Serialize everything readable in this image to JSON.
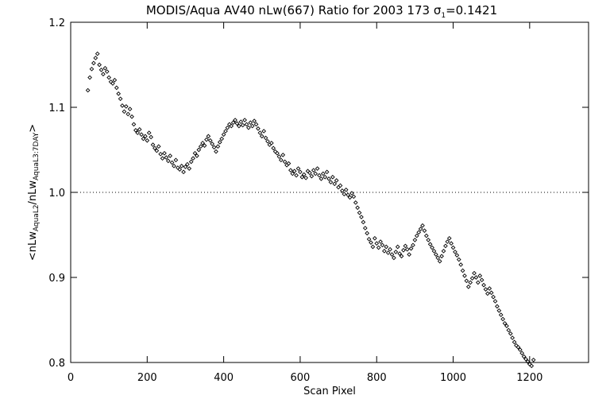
{
  "chart_data": {
    "type": "scatter",
    "title_prefix": "MODIS/Aqua AV40 nLw(667) Ratio for 2003 173 ",
    "title_sigma": "σ",
    "title_sigma_sub": "1",
    "title_suffix": "=0.1421",
    "xlabel": "Scan Pixel",
    "ylabel_open": "<nLw",
    "ylabel_sub1": "AquaL2",
    "ylabel_mid": "/nLw",
    "ylabel_sub2": "AquaL3:7DAY",
    "ylabel_close": ">",
    "x_ticks": [
      "0",
      "200",
      "400",
      "600",
      "800",
      "1000",
      "1200"
    ],
    "y_ticks": [
      "0.8",
      "0.9",
      "1.0",
      "1.1",
      "1.2"
    ],
    "xlim": [
      0,
      1354
    ],
    "ylim": [
      0.8,
      1.2
    ],
    "reference_line_y": 1.0,
    "marker": "diamond",
    "points": [
      [
        45,
        1.12
      ],
      [
        50,
        1.135
      ],
      [
        55,
        1.145
      ],
      [
        60,
        1.152
      ],
      [
        65,
        1.158
      ],
      [
        70,
        1.163
      ],
      [
        75,
        1.15
      ],
      [
        80,
        1.144
      ],
      [
        85,
        1.139
      ],
      [
        90,
        1.146
      ],
      [
        95,
        1.142
      ],
      [
        100,
        1.135
      ],
      [
        105,
        1.13
      ],
      [
        110,
        1.128
      ],
      [
        115,
        1.132
      ],
      [
        120,
        1.123
      ],
      [
        125,
        1.116
      ],
      [
        130,
        1.11
      ],
      [
        135,
        1.102
      ],
      [
        140,
        1.095
      ],
      [
        145,
        1.101
      ],
      [
        150,
        1.092
      ],
      [
        155,
        1.098
      ],
      [
        160,
        1.089
      ],
      [
        165,
        1.08
      ],
      [
        170,
        1.073
      ],
      [
        175,
        1.07
      ],
      [
        180,
        1.074
      ],
      [
        185,
        1.068
      ],
      [
        190,
        1.063
      ],
      [
        195,
        1.066
      ],
      [
        200,
        1.061
      ],
      [
        205,
        1.07
      ],
      [
        210,
        1.065
      ],
      [
        215,
        1.056
      ],
      [
        220,
        1.052
      ],
      [
        225,
        1.049
      ],
      [
        230,
        1.054
      ],
      [
        235,
        1.045
      ],
      [
        240,
        1.04
      ],
      [
        245,
        1.046
      ],
      [
        250,
        1.041
      ],
      [
        255,
        1.037
      ],
      [
        260,
        1.043
      ],
      [
        265,
        1.035
      ],
      [
        270,
        1.031
      ],
      [
        275,
        1.038
      ],
      [
        280,
        1.029
      ],
      [
        285,
        1.027
      ],
      [
        290,
        1.031
      ],
      [
        295,
        1.024
      ],
      [
        300,
        1.03
      ],
      [
        305,
        1.033
      ],
      [
        310,
        1.028
      ],
      [
        315,
        1.036
      ],
      [
        320,
        1.04
      ],
      [
        325,
        1.046
      ],
      [
        330,
        1.043
      ],
      [
        335,
        1.05
      ],
      [
        340,
        1.054
      ],
      [
        345,
        1.058
      ],
      [
        350,
        1.055
      ],
      [
        355,
        1.062
      ],
      [
        360,
        1.066
      ],
      [
        365,
        1.061
      ],
      [
        370,
        1.057
      ],
      [
        375,
        1.053
      ],
      [
        380,
        1.048
      ],
      [
        385,
        1.054
      ],
      [
        390,
        1.059
      ],
      [
        395,
        1.063
      ],
      [
        400,
        1.068
      ],
      [
        405,
        1.072
      ],
      [
        410,
        1.076
      ],
      [
        415,
        1.08
      ],
      [
        420,
        1.078
      ],
      [
        425,
        1.082
      ],
      [
        430,
        1.085
      ],
      [
        435,
        1.081
      ],
      [
        440,
        1.078
      ],
      [
        445,
        1.083
      ],
      [
        450,
        1.079
      ],
      [
        455,
        1.085
      ],
      [
        460,
        1.08
      ],
      [
        465,
        1.076
      ],
      [
        470,
        1.082
      ],
      [
        475,
        1.078
      ],
      [
        480,
        1.084
      ],
      [
        485,
        1.08
      ],
      [
        490,
        1.075
      ],
      [
        495,
        1.07
      ],
      [
        500,
        1.066
      ],
      [
        505,
        1.072
      ],
      [
        510,
        1.064
      ],
      [
        515,
        1.06
      ],
      [
        520,
        1.056
      ],
      [
        525,
        1.058
      ],
      [
        530,
        1.052
      ],
      [
        535,
        1.048
      ],
      [
        540,
        1.046
      ],
      [
        545,
        1.042
      ],
      [
        550,
        1.038
      ],
      [
        555,
        1.044
      ],
      [
        560,
        1.036
      ],
      [
        565,
        1.032
      ],
      [
        570,
        1.034
      ],
      [
        575,
        1.026
      ],
      [
        580,
        1.022
      ],
      [
        585,
        1.025
      ],
      [
        590,
        1.02
      ],
      [
        595,
        1.028
      ],
      [
        600,
        1.024
      ],
      [
        605,
        1.018
      ],
      [
        610,
        1.021
      ],
      [
        615,
        1.017
      ],
      [
        620,
        1.025
      ],
      [
        625,
        1.023
      ],
      [
        630,
        1.019
      ],
      [
        635,
        1.026
      ],
      [
        640,
        1.022
      ],
      [
        645,
        1.028
      ],
      [
        650,
        1.02
      ],
      [
        655,
        1.016
      ],
      [
        660,
        1.022
      ],
      [
        665,
        1.018
      ],
      [
        670,
        1.024
      ],
      [
        675,
        1.016
      ],
      [
        680,
        1.012
      ],
      [
        685,
        1.018
      ],
      [
        690,
        1.01
      ],
      [
        695,
        1.014
      ],
      [
        700,
        1.006
      ],
      [
        705,
        1.008
      ],
      [
        710,
        1.002
      ],
      [
        715,
        0.998
      ],
      [
        720,
        1.003
      ],
      [
        725,
        0.997
      ],
      [
        730,
        0.994
      ],
      [
        735,
        0.999
      ],
      [
        740,
        0.995
      ],
      [
        745,
        0.988
      ],
      [
        750,
        0.982
      ],
      [
        755,
        0.976
      ],
      [
        760,
        0.971
      ],
      [
        765,
        0.965
      ],
      [
        770,
        0.958
      ],
      [
        775,
        0.952
      ],
      [
        780,
        0.945
      ],
      [
        785,
        0.941
      ],
      [
        790,
        0.936
      ],
      [
        795,
        0.946
      ],
      [
        800,
        0.94
      ],
      [
        805,
        0.935
      ],
      [
        810,
        0.942
      ],
      [
        815,
        0.938
      ],
      [
        820,
        0.931
      ],
      [
        825,
        0.936
      ],
      [
        830,
        0.929
      ],
      [
        835,
        0.933
      ],
      [
        840,
        0.927
      ],
      [
        845,
        0.923
      ],
      [
        850,
        0.93
      ],
      [
        855,
        0.936
      ],
      [
        860,
        0.928
      ],
      [
        865,
        0.925
      ],
      [
        870,
        0.932
      ],
      [
        875,
        0.937
      ],
      [
        880,
        0.933
      ],
      [
        885,
        0.927
      ],
      [
        890,
        0.934
      ],
      [
        895,
        0.938
      ],
      [
        900,
        0.944
      ],
      [
        905,
        0.949
      ],
      [
        910,
        0.953
      ],
      [
        915,
        0.957
      ],
      [
        920,
        0.961
      ],
      [
        925,
        0.955
      ],
      [
        930,
        0.949
      ],
      [
        935,
        0.944
      ],
      [
        940,
        0.939
      ],
      [
        945,
        0.935
      ],
      [
        950,
        0.931
      ],
      [
        955,
        0.927
      ],
      [
        960,
        0.923
      ],
      [
        965,
        0.919
      ],
      [
        970,
        0.925
      ],
      [
        975,
        0.931
      ],
      [
        980,
        0.937
      ],
      [
        985,
        0.942
      ],
      [
        990,
        0.946
      ],
      [
        995,
        0.94
      ],
      [
        1000,
        0.935
      ],
      [
        1005,
        0.93
      ],
      [
        1010,
        0.926
      ],
      [
        1015,
        0.921
      ],
      [
        1020,
        0.915
      ],
      [
        1025,
        0.908
      ],
      [
        1030,
        0.902
      ],
      [
        1035,
        0.896
      ],
      [
        1040,
        0.889
      ],
      [
        1045,
        0.894
      ],
      [
        1050,
        0.899
      ],
      [
        1055,
        0.905
      ],
      [
        1060,
        0.9
      ],
      [
        1065,
        0.894
      ],
      [
        1070,
        0.902
      ],
      [
        1075,
        0.897
      ],
      [
        1080,
        0.891
      ],
      [
        1085,
        0.886
      ],
      [
        1090,
        0.881
      ],
      [
        1095,
        0.887
      ],
      [
        1100,
        0.882
      ],
      [
        1105,
        0.877
      ],
      [
        1110,
        0.872
      ],
      [
        1115,
        0.866
      ],
      [
        1120,
        0.861
      ],
      [
        1125,
        0.856
      ],
      [
        1130,
        0.851
      ],
      [
        1135,
        0.846
      ],
      [
        1140,
        0.843
      ],
      [
        1145,
        0.838
      ],
      [
        1150,
        0.834
      ],
      [
        1155,
        0.829
      ],
      [
        1160,
        0.824
      ],
      [
        1165,
        0.82
      ],
      [
        1170,
        0.818
      ],
      [
        1175,
        0.815
      ],
      [
        1180,
        0.811
      ],
      [
        1185,
        0.807
      ],
      [
        1190,
        0.804
      ],
      [
        1195,
        0.801
      ],
      [
        1200,
        0.798
      ],
      [
        1205,
        0.796
      ],
      [
        1210,
        0.803
      ]
    ]
  }
}
